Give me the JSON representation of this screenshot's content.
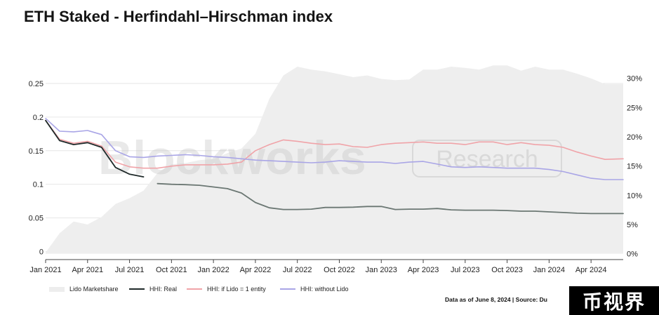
{
  "title": "ETH Staked - Herfindahl–Hirschman index",
  "watermark": {
    "left": "Blockworks",
    "right": "Research"
  },
  "source_note": "Data as of June 8, 2024 | Source: Du",
  "stamp_text": "币视界",
  "colors": {
    "marketshare": "#eeeeee",
    "real": "#1f2a2a",
    "real_late": "#6b7773",
    "if_lido_one_entity": "#f0a3a8",
    "without_lido": "#a9a5e6",
    "stamp_bg": "#000000"
  },
  "chart_data": {
    "type": "line",
    "title": "ETH Staked - Herfindahl–Hirschman index",
    "x_ticks": [
      "Jan 2021",
      "Apr 2021",
      "Jul 2021",
      "Oct 2021",
      "Jan 2022",
      "Apr 2022",
      "Jul 2022",
      "Oct 2022",
      "Jan 2023",
      "Apr 2023",
      "Jul 2023",
      "Oct 2023",
      "Jan 2024",
      "Apr 2024"
    ],
    "x_range": [
      0,
      41.3
    ],
    "y_left": {
      "range": [
        -0.012,
        0.275
      ],
      "ticks": [
        0,
        0.05,
        0.1,
        0.15,
        0.2,
        0.25
      ],
      "tick_labels": [
        "0",
        "0.05",
        "0.1",
        "0.15",
        "0.2",
        "0.25"
      ]
    },
    "y_right": {
      "range": [
        -1,
        32
      ],
      "ticks": [
        0,
        5,
        10,
        15,
        20,
        25,
        30
      ],
      "tick_labels": [
        "0%",
        "5%",
        "10%",
        "15%",
        "20%",
        "25%",
        "30%"
      ]
    },
    "grid": "horizontal",
    "legend_position": "bottom-left",
    "series": [
      {
        "name": "Lido Marketshare",
        "kind": "area",
        "axis": "right",
        "x": [
          0,
          1,
          2,
          3,
          4,
          5,
          6,
          7,
          8,
          9,
          10,
          11,
          12,
          13,
          14,
          15,
          16,
          17,
          18,
          19,
          20,
          21,
          22,
          23,
          24,
          25,
          26,
          27,
          28,
          29,
          30,
          31,
          32,
          33,
          34,
          35,
          36,
          37,
          38,
          39,
          40,
          41.3
        ],
        "y": [
          0.2,
          3.5,
          5.5,
          5,
          6.3,
          8.5,
          9.5,
          10.8,
          13.8,
          15.3,
          15.5,
          16,
          16.2,
          17.2,
          18,
          20.5,
          26.5,
          30.5,
          32,
          31.5,
          31.2,
          30.7,
          30.2,
          30.5,
          29.9,
          29.7,
          29.8,
          31.5,
          31.5,
          32,
          31.8,
          31.5,
          32.2,
          32.2,
          31.3,
          32,
          31.5,
          31.5,
          30.8,
          30,
          29,
          29
        ]
      },
      {
        "name": "HHI: Real",
        "kind": "line",
        "axis": "left",
        "x": [
          0,
          1,
          2,
          3,
          4,
          5,
          6,
          7,
          8,
          9,
          10,
          11,
          12,
          13,
          14,
          15,
          16,
          17,
          18,
          19,
          20,
          21,
          22,
          23,
          24,
          25,
          26,
          27,
          28,
          29,
          30,
          31,
          32,
          33,
          34,
          35,
          36,
          37,
          38,
          39,
          40,
          41.3
        ],
        "y": [
          0.195,
          0.165,
          0.159,
          0.162,
          0.155,
          0.125,
          0.115,
          0.111,
          0.101,
          0.1,
          0.0995,
          0.0985,
          0.096,
          0.0935,
          0.087,
          0.073,
          0.065,
          0.0625,
          0.0625,
          0.063,
          0.0655,
          0.0655,
          0.066,
          0.067,
          0.067,
          0.0625,
          0.063,
          0.063,
          0.064,
          0.062,
          0.0615,
          0.0615,
          0.0615,
          0.061,
          0.06,
          0.06,
          0.059,
          0.058,
          0.057,
          0.0565,
          0.0565,
          0.0565
        ]
      },
      {
        "name": "HHI: if Lido = 1 entity",
        "kind": "line",
        "axis": "left",
        "x": [
          0,
          1,
          2,
          3,
          4,
          5,
          6,
          7,
          8,
          9,
          10,
          11,
          12,
          13,
          14,
          15,
          16,
          17,
          18,
          19,
          20,
          21,
          22,
          23,
          24,
          25,
          26,
          27,
          28,
          29,
          30,
          31,
          32,
          33,
          34,
          35,
          36,
          37,
          38,
          39,
          40,
          41.3
        ],
        "y": [
          0.195,
          0.167,
          0.161,
          0.164,
          0.157,
          0.133,
          0.126,
          0.124,
          0.124,
          0.127,
          0.129,
          0.129,
          0.129,
          0.13,
          0.133,
          0.15,
          0.159,
          0.166,
          0.164,
          0.161,
          0.159,
          0.16,
          0.156,
          0.155,
          0.159,
          0.161,
          0.162,
          0.163,
          0.161,
          0.161,
          0.159,
          0.163,
          0.163,
          0.159,
          0.162,
          0.159,
          0.158,
          0.155,
          0.148,
          0.142,
          0.137,
          0.138
        ]
      },
      {
        "name": "HHI: without Lido",
        "kind": "line",
        "axis": "left",
        "x": [
          0,
          1,
          2,
          3,
          4,
          5,
          6,
          7,
          8,
          9,
          10,
          11,
          12,
          13,
          14,
          15,
          16,
          17,
          18,
          19,
          20,
          21,
          22,
          23,
          24,
          25,
          26,
          27,
          28,
          29,
          30,
          31,
          32,
          33,
          34,
          35,
          36,
          37,
          38,
          39,
          40,
          41.3
        ],
        "y": [
          0.198,
          0.179,
          0.178,
          0.18,
          0.174,
          0.15,
          0.141,
          0.14,
          0.142,
          0.143,
          0.144,
          0.143,
          0.141,
          0.14,
          0.138,
          0.136,
          0.135,
          0.134,
          0.133,
          0.132,
          0.133,
          0.135,
          0.134,
          0.133,
          0.133,
          0.131,
          0.133,
          0.134,
          0.13,
          0.126,
          0.125,
          0.126,
          0.125,
          0.124,
          0.124,
          0.124,
          0.122,
          0.119,
          0.114,
          0.109,
          0.107,
          0.107
        ]
      }
    ],
    "legend": [
      "Lido Marketshare",
      "HHI: Real",
      "HHI: if Lido = 1 entity",
      "HHI: without Lido"
    ]
  }
}
